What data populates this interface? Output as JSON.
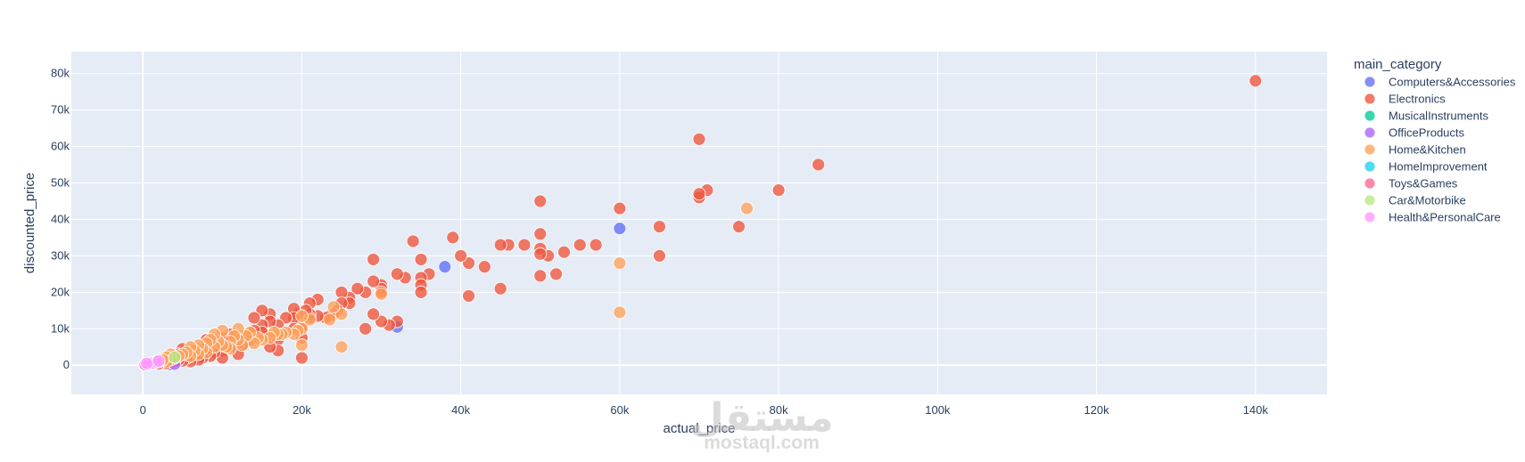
{
  "chart_data": {
    "type": "scatter",
    "xlabel": "actual_price",
    "ylabel": "discounted_price",
    "xlim": [
      -9000,
      149000
    ],
    "ylim": [
      -8000,
      86000
    ],
    "x_ticks": [
      {
        "value": 0,
        "label": "0"
      },
      {
        "value": 20000,
        "label": "20k"
      },
      {
        "value": 40000,
        "label": "40k"
      },
      {
        "value": 60000,
        "label": "60k"
      },
      {
        "value": 80000,
        "label": "80k"
      },
      {
        "value": 100000,
        "label": "100k"
      },
      {
        "value": 120000,
        "label": "120k"
      },
      {
        "value": 140000,
        "label": "140k"
      }
    ],
    "y_ticks": [
      {
        "value": 0,
        "label": "0"
      },
      {
        "value": 10000,
        "label": "10k"
      },
      {
        "value": 20000,
        "label": "20k"
      },
      {
        "value": 30000,
        "label": "30k"
      },
      {
        "value": 40000,
        "label": "40k"
      },
      {
        "value": 50000,
        "label": "50k"
      },
      {
        "value": 60000,
        "label": "60k"
      },
      {
        "value": 70000,
        "label": "70k"
      },
      {
        "value": 80000,
        "label": "80k"
      }
    ],
    "grid": true,
    "legend_position": "right",
    "legend_title": "main_category",
    "series": [
      {
        "name": "Computers&Accessories",
        "color": "#636efa",
        "points": [
          [
            500,
            300
          ],
          [
            1200,
            500
          ],
          [
            2500,
            800
          ],
          [
            4000,
            1500
          ],
          [
            38000,
            27000
          ],
          [
            60000,
            37500
          ],
          [
            32000,
            10500
          ],
          [
            3500,
            200
          ]
        ]
      },
      {
        "name": "Electronics",
        "color": "#ef553b",
        "points": [
          [
            140000,
            78000
          ],
          [
            70000,
            62000
          ],
          [
            85000,
            55000
          ],
          [
            80000,
            48000
          ],
          [
            71000,
            48000
          ],
          [
            70000,
            46000
          ],
          [
            70000,
            47000
          ],
          [
            75000,
            38000
          ],
          [
            65000,
            38000
          ],
          [
            65000,
            30000
          ],
          [
            60000,
            43000
          ],
          [
            57000,
            33000
          ],
          [
            55000,
            33000
          ],
          [
            53000,
            31000
          ],
          [
            52000,
            25000
          ],
          [
            51000,
            30000
          ],
          [
            50000,
            45000
          ],
          [
            50000,
            36000
          ],
          [
            50000,
            32000
          ],
          [
            50000,
            30500
          ],
          [
            50000,
            24500
          ],
          [
            48000,
            33000
          ],
          [
            46000,
            33000
          ],
          [
            45000,
            33000
          ],
          [
            45000,
            21000
          ],
          [
            43000,
            27000
          ],
          [
            41000,
            28000
          ],
          [
            41000,
            19000
          ],
          [
            40000,
            30000
          ],
          [
            39000,
            35000
          ],
          [
            36000,
            25000
          ],
          [
            35000,
            29000
          ],
          [
            35000,
            24000
          ],
          [
            35000,
            22000
          ],
          [
            35000,
            20000
          ],
          [
            34000,
            34000
          ],
          [
            33000,
            24000
          ],
          [
            32000,
            25000
          ],
          [
            32000,
            12000
          ],
          [
            31000,
            11000
          ],
          [
            30000,
            22000
          ],
          [
            30000,
            21000
          ],
          [
            30000,
            20000
          ],
          [
            30000,
            12000
          ],
          [
            29000,
            29000
          ],
          [
            29000,
            23000
          ],
          [
            29000,
            14000
          ],
          [
            28000,
            20000
          ],
          [
            28000,
            10000
          ],
          [
            27000,
            21000
          ],
          [
            26000,
            18500
          ],
          [
            26000,
            17000
          ],
          [
            25000,
            20000
          ],
          [
            25000,
            17000
          ],
          [
            24500,
            15000
          ],
          [
            24000,
            14000
          ],
          [
            23500,
            13500
          ],
          [
            23000,
            13000
          ],
          [
            22000,
            18000
          ],
          [
            22000,
            13500
          ],
          [
            21000,
            17000
          ],
          [
            21000,
            14000
          ],
          [
            21000,
            13000
          ],
          [
            20500,
            15000
          ],
          [
            20000,
            12000
          ],
          [
            20000,
            10500
          ],
          [
            20000,
            7500
          ],
          [
            20000,
            2000
          ],
          [
            19500,
            14000
          ],
          [
            19000,
            15500
          ],
          [
            19000,
            13000
          ],
          [
            19000,
            10000
          ],
          [
            18000,
            13000
          ],
          [
            17500,
            9000
          ],
          [
            17000,
            11000
          ],
          [
            17000,
            7000
          ],
          [
            17000,
            4000
          ],
          [
            16000,
            14000
          ],
          [
            16000,
            12000
          ],
          [
            16000,
            5000
          ],
          [
            15500,
            8000
          ],
          [
            15000,
            15000
          ],
          [
            15000,
            11000
          ],
          [
            15000,
            9000
          ],
          [
            14000,
            13000
          ],
          [
            14000,
            9500
          ],
          [
            13500,
            7000
          ],
          [
            13000,
            8000
          ],
          [
            12500,
            5500
          ],
          [
            12000,
            6000
          ],
          [
            12000,
            3000
          ],
          [
            11500,
            7500
          ],
          [
            11000,
            8500
          ],
          [
            11000,
            5000
          ],
          [
            10500,
            6500
          ],
          [
            10000,
            7500
          ],
          [
            10000,
            4000
          ],
          [
            10000,
            2000
          ],
          [
            9500,
            5500
          ],
          [
            9000,
            7000
          ],
          [
            9000,
            3500
          ],
          [
            8500,
            6000
          ],
          [
            8500,
            2500
          ],
          [
            8000,
            7000
          ],
          [
            8000,
            4500
          ],
          [
            7500,
            5000
          ],
          [
            7500,
            2000
          ],
          [
            7000,
            3500
          ],
          [
            7000,
            1500
          ],
          [
            6500,
            4000
          ],
          [
            6000,
            3000
          ],
          [
            6000,
            1000
          ],
          [
            5500,
            3500
          ],
          [
            5500,
            2000
          ],
          [
            5000,
            4500
          ],
          [
            5000,
            2500
          ],
          [
            5000,
            1200
          ],
          [
            4500,
            3000
          ],
          [
            4500,
            1500
          ],
          [
            4000,
            2500
          ],
          [
            4000,
            1000
          ],
          [
            3500,
            2000
          ],
          [
            3500,
            800
          ],
          [
            3000,
            1500
          ],
          [
            3000,
            500
          ],
          [
            2500,
            1200
          ],
          [
            2000,
            1000
          ],
          [
            2000,
            400
          ],
          [
            1500,
            800
          ],
          [
            1000,
            500
          ],
          [
            500,
            200
          ]
        ]
      },
      {
        "name": "MusicalInstruments",
        "color": "#00cc96",
        "points": [
          [
            800,
            400
          ],
          [
            1500,
            700
          ]
        ]
      },
      {
        "name": "OfficeProducts",
        "color": "#ab63fa",
        "points": [
          [
            300,
            200
          ],
          [
            700,
            400
          ],
          [
            4000,
            300
          ]
        ]
      },
      {
        "name": "Home&Kitchen",
        "color": "#ffa15a",
        "points": [
          [
            76000,
            43000
          ],
          [
            60000,
            28000
          ],
          [
            60000,
            14500
          ],
          [
            30000,
            19500
          ],
          [
            25000,
            5000
          ],
          [
            25000,
            14000
          ],
          [
            24000,
            16000
          ],
          [
            23500,
            12500
          ],
          [
            21000,
            12500
          ],
          [
            20000,
            13500
          ],
          [
            20000,
            10000
          ],
          [
            20000,
            5500
          ],
          [
            19500,
            9500
          ],
          [
            19000,
            8500
          ],
          [
            18000,
            9000
          ],
          [
            17500,
            8500
          ],
          [
            17000,
            8500
          ],
          [
            16500,
            9000
          ],
          [
            16000,
            7500
          ],
          [
            15000,
            7000
          ],
          [
            14500,
            7500
          ],
          [
            14000,
            6000
          ],
          [
            13500,
            9000
          ],
          [
            13000,
            8000
          ],
          [
            12500,
            5500
          ],
          [
            12000,
            10000
          ],
          [
            12000,
            7000
          ],
          [
            11500,
            8000
          ],
          [
            11000,
            6500
          ],
          [
            11000,
            4500
          ],
          [
            10500,
            5000
          ],
          [
            10000,
            9500
          ],
          [
            10000,
            5500
          ],
          [
            9500,
            6500
          ],
          [
            9000,
            8500
          ],
          [
            9000,
            5000
          ],
          [
            8500,
            7000
          ],
          [
            8000,
            6000
          ],
          [
            8000,
            3500
          ],
          [
            7500,
            4500
          ],
          [
            7000,
            5500
          ],
          [
            7000,
            3000
          ],
          [
            6500,
            4000
          ],
          [
            6000,
            5000
          ],
          [
            6000,
            2500
          ],
          [
            5500,
            3500
          ],
          [
            5000,
            3000
          ],
          [
            4500,
            2500
          ],
          [
            4000,
            2000
          ],
          [
            3500,
            3000
          ],
          [
            3500,
            1500
          ],
          [
            3000,
            2200
          ],
          [
            3000,
            1000
          ],
          [
            2500,
            1500
          ],
          [
            2000,
            1000
          ],
          [
            1500,
            700
          ],
          [
            1000,
            400
          ]
        ]
      },
      {
        "name": "HomeImprovement",
        "color": "#19d3f3",
        "points": [
          [
            900,
            500
          ],
          [
            1300,
            600
          ]
        ]
      },
      {
        "name": "Toys&Games",
        "color": "#ff6692",
        "points": [
          [
            200,
            100
          ]
        ]
      },
      {
        "name": "Car&Motorbike",
        "color": "#b6e880",
        "points": [
          [
            4000,
            2200
          ]
        ]
      },
      {
        "name": "Health&PersonalCare",
        "color": "#ff97ff",
        "points": [
          [
            300,
            150
          ],
          [
            700,
            300
          ],
          [
            1200,
            600
          ],
          [
            1800,
            900
          ],
          [
            2000,
            1200
          ],
          [
            500,
            500
          ]
        ]
      }
    ]
  },
  "legend": {
    "title": "main_category",
    "items": [
      {
        "label": "Computers&Accessories",
        "color": "#636efa"
      },
      {
        "label": "Electronics",
        "color": "#ef553b"
      },
      {
        "label": "MusicalInstruments",
        "color": "#00cc96"
      },
      {
        "label": "OfficeProducts",
        "color": "#ab63fa"
      },
      {
        "label": "Home&Kitchen",
        "color": "#ffa15a"
      },
      {
        "label": "HomeImprovement",
        "color": "#19d3f3"
      },
      {
        "label": "Toys&Games",
        "color": "#ff6692"
      },
      {
        "label": "Car&Motorbike",
        "color": "#b6e880"
      },
      {
        "label": "Health&PersonalCare",
        "color": "#ff97ff"
      }
    ]
  },
  "watermark": {
    "logo_text": "مستقل",
    "url_text": "mostaql.com"
  },
  "colors": {
    "plot_background": "#e5ecf6",
    "grid": "#ffffff",
    "text": "#2a3f5f"
  }
}
